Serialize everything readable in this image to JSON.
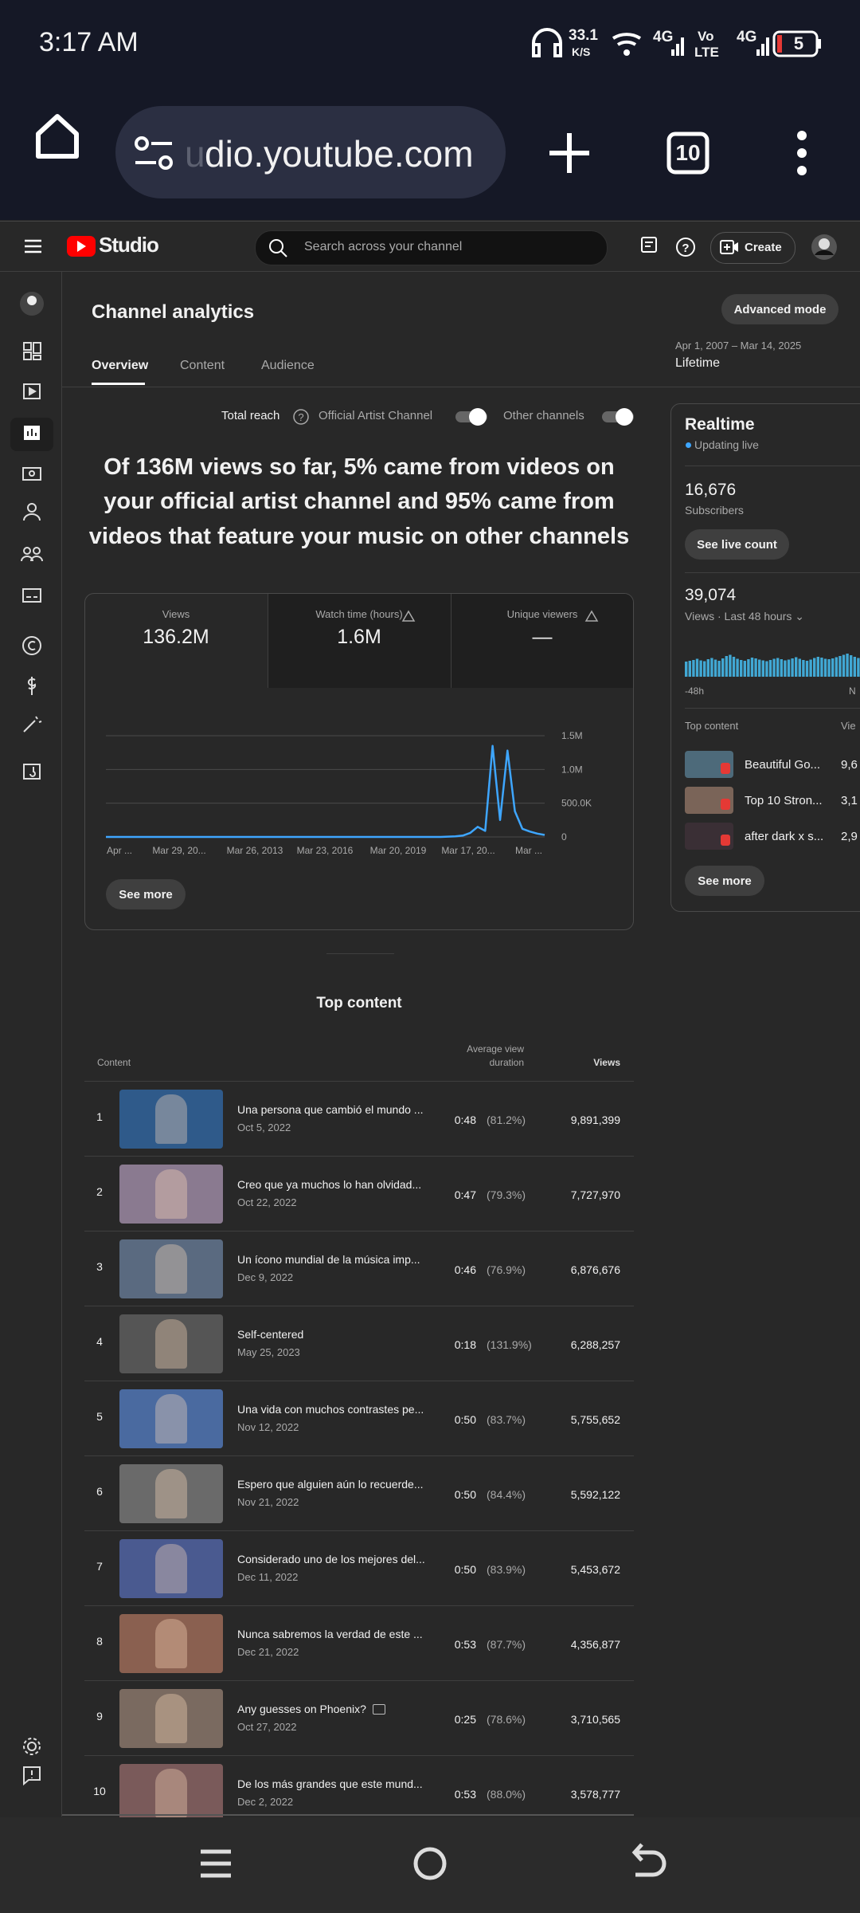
{
  "status_bar": {
    "time": "3:17 AM",
    "net_speed": "33.1",
    "net_unit": "K/S",
    "sim1": "4G",
    "volte_top": "Vo",
    "volte_bottom": "LTE",
    "sim2": "4G",
    "battery": "5"
  },
  "browser": {
    "url_fade": "u",
    "url": "dio.youtube.com",
    "tabs": "10"
  },
  "header": {
    "logo": "Studio",
    "search_placeholder": "Search across your channel",
    "create": "Create"
  },
  "page": {
    "title": "Channel analytics",
    "advanced_mode": "Advanced mode",
    "tabs": [
      "Overview",
      "Content",
      "Audience"
    ],
    "date_range": "Apr 1, 2007 – Mar 14, 2025",
    "period": "Lifetime"
  },
  "reach": {
    "label": "Total reach",
    "official": "Official Artist Channel",
    "other": "Other channels",
    "headline": [
      "Of 136M views so far, 5% came from videos on",
      "your official artist channel and 95% came from",
      "videos that feature your music on other channels"
    ]
  },
  "metrics": [
    {
      "label": "Views",
      "value": "136.2M"
    },
    {
      "label": "Watch time (hours)",
      "value": "1.6M"
    },
    {
      "label": "Unique viewers",
      "value": "—"
    }
  ],
  "chart_data": [
    {
      "type": "line",
      "color": "#3ea6ff",
      "grid": true,
      "xtick_labels": [
        "Apr ...",
        "Mar 29, 20...",
        "Mar 26, 2013",
        "Mar 23, 2016",
        "Mar 20, 2019",
        "Mar 17, 20...",
        "Mar ..."
      ],
      "values": [
        0,
        0,
        0,
        0,
        0,
        0,
        0,
        0,
        0,
        0,
        0,
        0,
        0,
        0,
        0,
        0,
        0,
        0,
        0,
        0,
        0,
        0,
        0,
        0,
        0,
        0,
        0,
        0,
        0,
        0,
        0,
        0,
        0,
        0,
        0,
        0,
        0,
        0,
        0,
        0,
        0,
        0,
        0,
        0,
        0,
        0,
        5000,
        10000,
        20000,
        60000,
        150000,
        90000,
        1350000,
        250000,
        1280000,
        380000,
        120000,
        80000,
        50000,
        30000
      ],
      "ylim": [
        0,
        1500000
      ],
      "yticks": [
        0,
        {
          "value": 500000,
          "label": "500.0K"
        },
        {
          "value": 1000000,
          "label": "1.0M"
        },
        {
          "value": 1500000,
          "label": "1.5M"
        }
      ]
    },
    {
      "type": "bar",
      "color": "#41a8d4",
      "values": [
        38,
        40,
        42,
        45,
        41,
        39,
        44,
        47,
        43,
        40,
        46,
        52,
        55,
        50,
        45,
        42,
        40,
        44,
        48,
        46,
        43,
        41,
        39,
        42,
        45,
        47,
        44,
        41,
        43,
        46,
        49,
        45,
        42,
        40,
        43,
        47,
        50,
        48,
        45,
        44,
        46,
        49,
        52,
        55,
        58,
        54,
        50,
        47
      ]
    }
  ],
  "see_more": "See more",
  "realtime": {
    "title": "Realtime",
    "status": "Updating live",
    "subscribers": "16,676",
    "subscribers_label": "Subscribers",
    "see_live_count": "See live count",
    "views": "39,074",
    "views_label": "Views · Last 48 hours ⌄",
    "axis_start": "-48h",
    "axis_end": "N",
    "top_label": "Top content",
    "views_header": "Vie",
    "items": [
      {
        "title": "Beautiful Go...",
        "views": "9,6"
      },
      {
        "title": "Top 10 Stron...",
        "views": "3,1"
      },
      {
        "title": "after dark x s...",
        "views": "2,9"
      }
    ],
    "see_more": "See more"
  },
  "top_content": {
    "title": "Top content",
    "headers": [
      "Content",
      "Average view duration",
      "Views"
    ],
    "rows": [
      {
        "rank": 1,
        "title": "Una persona que cambió el mundo ...",
        "date": "Oct 5, 2022",
        "duration": "0:48",
        "percent": "(81.2%)",
        "views": "9,891,399"
      },
      {
        "rank": 2,
        "title": "Creo que ya muchos lo han olvidad...",
        "date": "Oct 22, 2022",
        "duration": "0:47",
        "percent": "(79.3%)",
        "views": "7,727,970"
      },
      {
        "rank": 3,
        "title": "Un ícono mundial de la música imp...",
        "date": "Dec 9, 2022",
        "duration": "0:46",
        "percent": "(76.9%)",
        "views": "6,876,676"
      },
      {
        "rank": 4,
        "title": "Self-centered",
        "date": "May 25, 2023",
        "duration": "0:18",
        "percent": "(131.9%)",
        "views": "6,288,257"
      },
      {
        "rank": 5,
        "title": "Una vida con muchos contrastes pe...",
        "date": "Nov 12, 2022",
        "duration": "0:50",
        "percent": "(83.7%)",
        "views": "5,755,652"
      },
      {
        "rank": 6,
        "title": "Espero que alguien aún lo recuerde...",
        "date": "Nov 21, 2022",
        "duration": "0:50",
        "percent": "(84.4%)",
        "views": "5,592,122"
      },
      {
        "rank": 7,
        "title": "Considerado uno de los mejores del...",
        "date": "Dec 11, 2022",
        "duration": "0:50",
        "percent": "(83.9%)",
        "views": "5,453,672"
      },
      {
        "rank": 8,
        "title": "Nunca sabremos la verdad de este ...",
        "date": "Dec 21, 2022",
        "duration": "0:53",
        "percent": "(87.7%)",
        "views": "4,356,877"
      },
      {
        "rank": 9,
        "title": "Any guesses on Phoenix?",
        "date": "Oct 27, 2022",
        "duration": "0:25",
        "percent": "(78.6%)",
        "views": "3,710,565"
      },
      {
        "rank": 10,
        "title": "De los más grandes que este mund...",
        "date": "Dec 2, 2022",
        "duration": "0:53",
        "percent": "(88.0%)",
        "views": "3,578,777"
      }
    ]
  }
}
